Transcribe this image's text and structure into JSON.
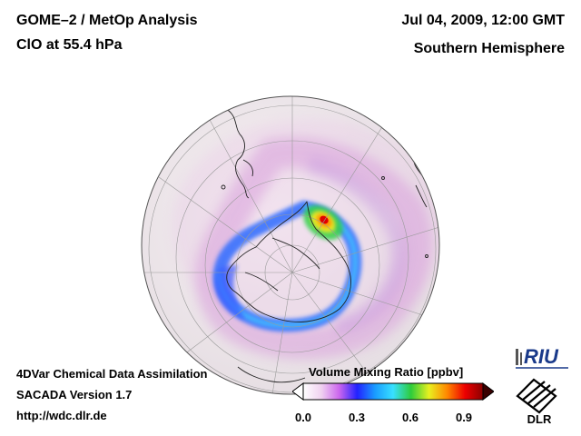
{
  "header": {
    "title": "GOME–2 / MetOp Analysis",
    "species": "ClO at 55.4 hPa",
    "datetime": "Jul 04, 2009, 12:00 GMT",
    "region": "Southern Hemisphere"
  },
  "footer": {
    "line1": "4DVar Chemical Data Assimilation",
    "line2": "SACADA Version 1.7",
    "url": "http://wdc.dlr.de"
  },
  "colorbar": {
    "title": "Volume Mixing Ratio [ppbv]",
    "ticks": [
      "0.0",
      "0.3",
      "0.6",
      "0.9"
    ],
    "range": [
      0.0,
      1.0
    ],
    "colors": [
      "#ffffff",
      "#f0d2f0",
      "#cc66ee",
      "#2222ff",
      "#1a9cff",
      "#38e0ff",
      "#2ecc3a",
      "#e8f020",
      "#ff8800",
      "#ee0000",
      "#8a0000"
    ]
  },
  "logos": {
    "riu": "RIU",
    "dlr": "DLR"
  },
  "map": {
    "projection": "orthographic",
    "hemisphere": "south",
    "land_color": "#efe6ec",
    "ocean_color": "#ffffff",
    "graticule_color": "#999999"
  }
}
